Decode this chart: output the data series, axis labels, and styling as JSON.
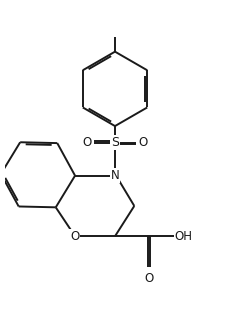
{
  "background": "#ffffff",
  "line_color": "#1a1a1a",
  "line_width": 1.4,
  "figsize": [
    2.3,
    3.32
  ],
  "dpi": 100,
  "xlim": [
    1.0,
    9.0
  ],
  "ylim": [
    1.5,
    13.5
  ]
}
